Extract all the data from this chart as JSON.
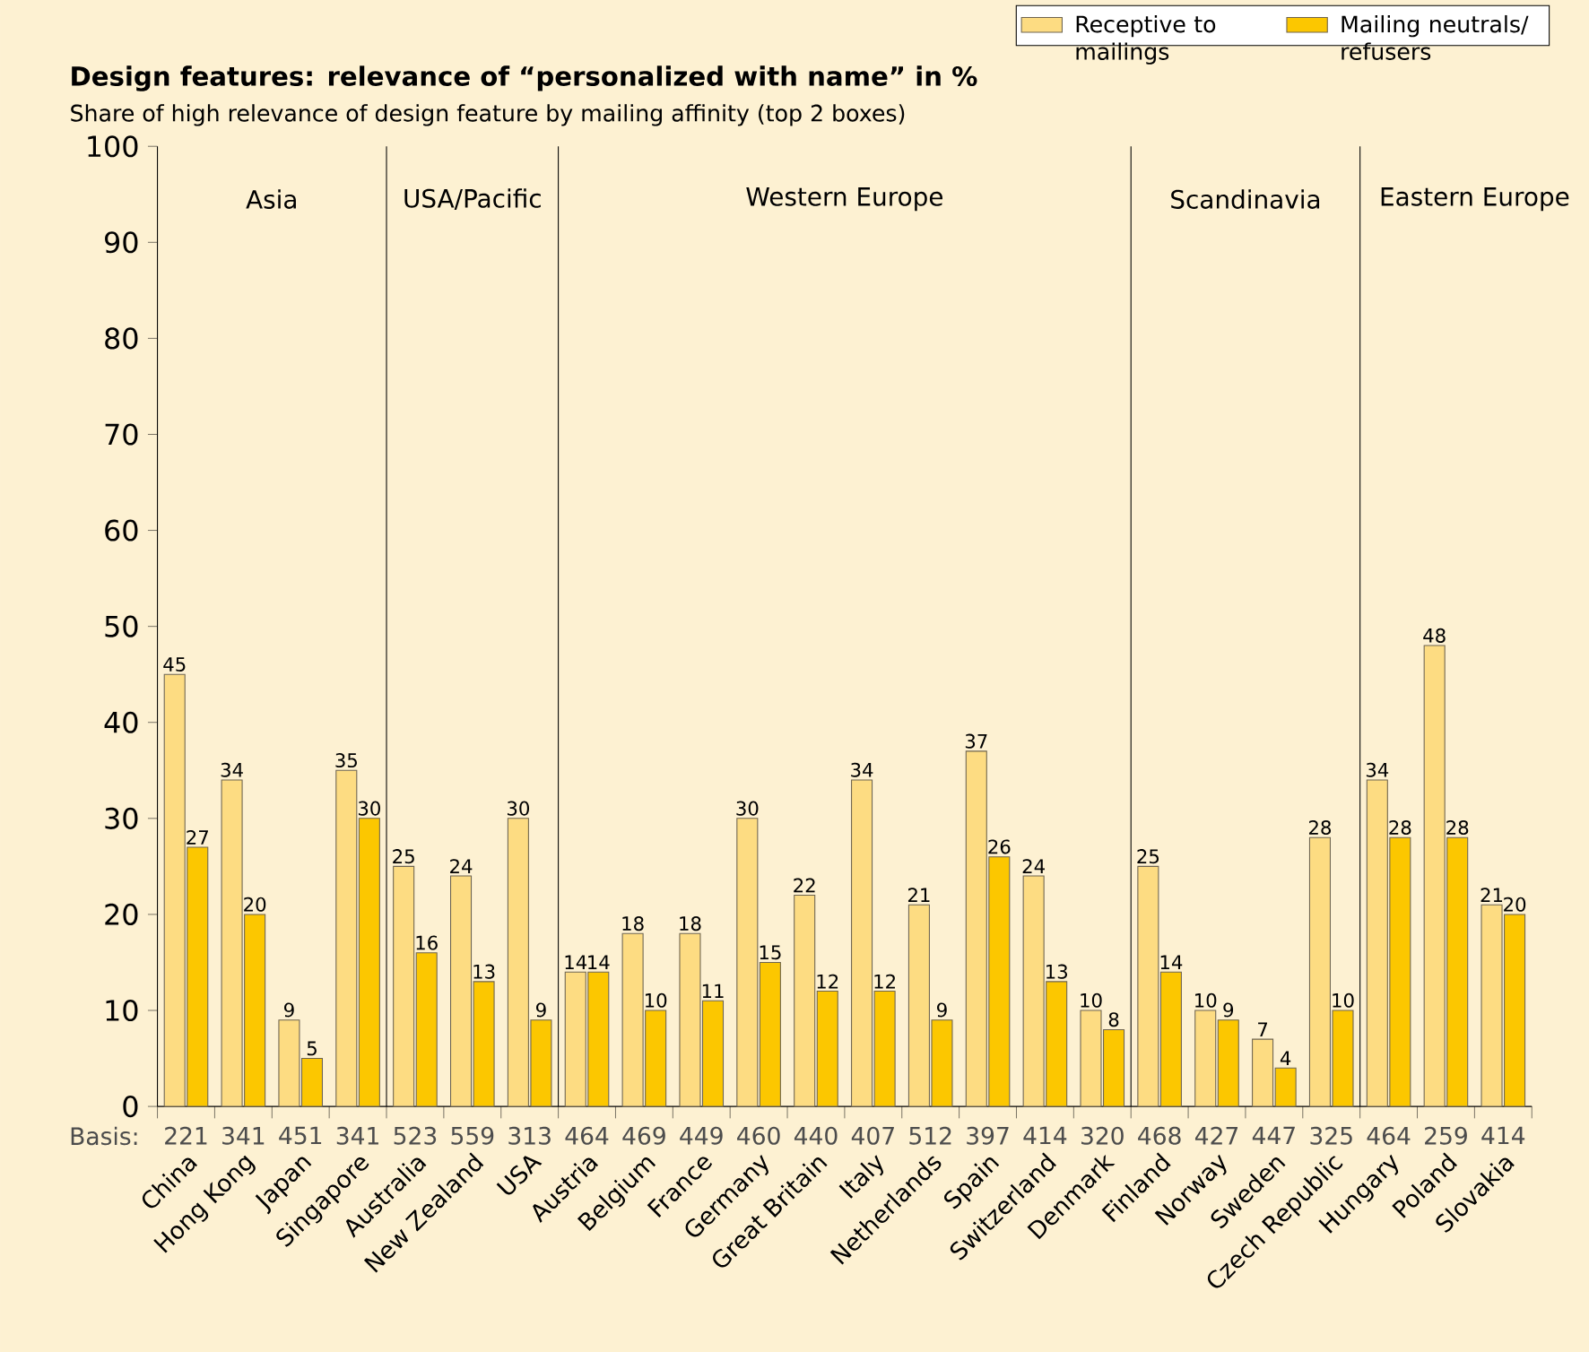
{
  "chart_data": {
    "type": "bar",
    "title": "Design features: relevance of “personalized with name” in %",
    "subtitle": "Share of high relevance of design feature by mailing affinity (top 2 boxes)",
    "categories": [
      "China",
      "Hong Kong",
      "Japan",
      "Singapore",
      "Australia",
      "New Zealand",
      "USA",
      "Austria",
      "Belgium",
      "France",
      "Germany",
      "Great Britain",
      "Italy",
      "Netherlands",
      "Spain",
      "Switzerland",
      "Denmark",
      "Finland",
      "Norway",
      "Sweden",
      "Czech Republic",
      "Hungary",
      "Poland",
      "Slovakia"
    ],
    "series": [
      {
        "name": "Receptive to mailings",
        "color": "#fddc82",
        "values": [
          45,
          34,
          9,
          35,
          25,
          24,
          30,
          14,
          18,
          18,
          30,
          22,
          34,
          21,
          37,
          24,
          10,
          25,
          10,
          7,
          28,
          34,
          48,
          21
        ]
      },
      {
        "name": "Mailing neutrals/ refusers",
        "color": "#fcc700",
        "values": [
          27,
          20,
          5,
          30,
          16,
          13,
          9,
          14,
          10,
          11,
          15,
          12,
          12,
          9,
          26,
          13,
          8,
          14,
          9,
          4,
          10,
          28,
          28,
          20
        ]
      }
    ],
    "ylim": [
      0,
      100
    ],
    "yticks": [
      0,
      10,
      20,
      30,
      40,
      50,
      60,
      70,
      80,
      90,
      100
    ],
    "data_labels": true,
    "legend": "top right",
    "annotations": [
      "Asia",
      "USA/Pacific",
      "Western Europe",
      "Scandinavia",
      "Eastern Europe",
      "Basis:",
      "221",
      "341",
      "451",
      "341",
      "523",
      "559",
      "313",
      "464",
      "469",
      "449",
      "460",
      "440",
      "407",
      "512",
      "397",
      "414",
      "320",
      "468",
      "427",
      "447",
      "325",
      "464",
      "259",
      "414"
    ]
  }
}
